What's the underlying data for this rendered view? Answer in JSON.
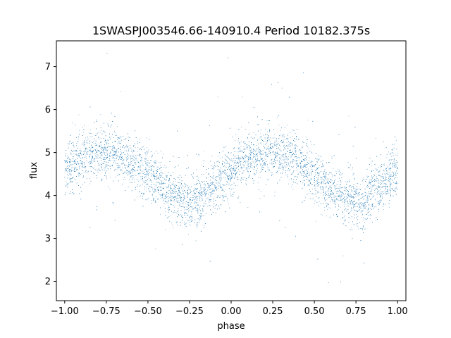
{
  "chart_data": {
    "type": "scatter",
    "title": "1SWASPJ003546.66-140910.4 Period 10182.375s",
    "xlabel": "phase",
    "ylabel": "flux",
    "xlim": [
      -1.05,
      1.05
    ],
    "ylim": [
      1.55,
      7.6
    ],
    "xticks": [
      -1.0,
      -0.75,
      -0.5,
      -0.25,
      0.0,
      0.25,
      0.5,
      0.75,
      1.0
    ],
    "xtick_labels": [
      "−1.00",
      "−0.75",
      "−0.50",
      "−0.25",
      "0.00",
      "0.25",
      "0.50",
      "0.75",
      "1.00"
    ],
    "yticks": [
      2,
      3,
      4,
      5,
      6,
      7
    ],
    "ytick_labels": [
      "2",
      "3",
      "4",
      "5",
      "6",
      "7"
    ],
    "grid": false,
    "marker_color": "#1f77b4",
    "series": [
      {
        "trend": {
          "phase": [
            -1.0,
            -0.9,
            -0.8,
            -0.7,
            -0.6,
            -0.5,
            -0.4,
            -0.3,
            -0.25,
            -0.2,
            -0.1,
            0.0,
            0.1,
            0.2,
            0.3,
            0.4,
            0.5,
            0.6,
            0.7,
            0.75,
            0.8,
            0.9,
            1.0
          ],
          "flux": [
            4.6,
            4.85,
            4.98,
            5.0,
            4.8,
            4.5,
            4.15,
            3.9,
            3.85,
            3.9,
            4.2,
            4.6,
            4.85,
            4.98,
            5.0,
            4.8,
            4.5,
            4.15,
            3.9,
            3.85,
            3.9,
            4.2,
            4.6
          ]
        },
        "scatter_sd": 0.3,
        "n_points": 9000
      }
    ]
  }
}
